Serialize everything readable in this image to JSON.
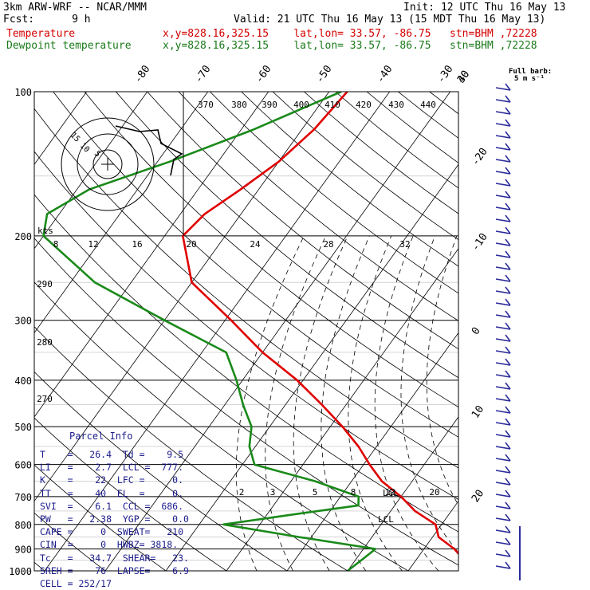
{
  "header": {
    "line1_left": "3km ARW-WRF -- NCAR/MMM",
    "line1_right": "Init: 12 UTC Thu 16 May 13",
    "line2_left": "Fcst:      9 h",
    "line2_right": "Valid: 21 UTC Thu 16 May 13 (15 MDT Thu 16 May 13)",
    "temp_label": "Temperature",
    "temp_info": "x,y=828.16,325.15    lat,lon= 33.57, -86.75   stn=BHM ,72228",
    "dew_label": "Dewpoint temperature",
    "dew_info": "x,y=828.16,325.15    lat,lon= 33.57, -86.75   stn=BHM ,72228"
  },
  "barb_legend": {
    "title": "Full barb:",
    "value": "5 m s⁻¹"
  },
  "colors": {
    "temperature": "#e00000",
    "dewpoint": "#1a8a1a",
    "barbs": "#2b2b9a",
    "grid": "#000000"
  },
  "chart_data": {
    "type": "skew-t",
    "pressure_levels": [
      100,
      200,
      300,
      400,
      500,
      600,
      700,
      800,
      900,
      1000
    ],
    "isotherm_labels": [
      -80,
      -70,
      -60,
      -50,
      -40,
      -30,
      -20,
      -10,
      0,
      10,
      20,
      30,
      40
    ],
    "theta_labels": [
      370,
      380,
      390,
      400,
      410,
      420,
      430,
      440
    ],
    "theta_labels_lower": [
      290,
      280,
      270
    ],
    "mixing_ratio_labels": [
      "2",
      "3",
      "5",
      "8",
      "12",
      "20"
    ],
    "hodograph": {
      "speed_unit": "kts",
      "ring_labels": [
        "5",
        "10",
        "15"
      ],
      "axis_labels": [
        "8",
        "12",
        "16",
        "20",
        "24",
        "28",
        "32"
      ]
    },
    "markers": [
      "LCL",
      "LCL"
    ],
    "series": [
      {
        "name": "Temperature",
        "points": [
          [
            100,
            -47
          ],
          [
            120,
            -48
          ],
          [
            140,
            -50
          ],
          [
            160,
            -53
          ],
          [
            180,
            -56
          ],
          [
            200,
            -57
          ],
          [
            250,
            -50
          ],
          [
            300,
            -39
          ],
          [
            350,
            -30
          ],
          [
            400,
            -21
          ],
          [
            450,
            -14
          ],
          [
            500,
            -8
          ],
          [
            550,
            -3
          ],
          [
            600,
            1
          ],
          [
            650,
            5
          ],
          [
            700,
            10
          ],
          [
            750,
            14
          ],
          [
            800,
            19
          ],
          [
            850,
            21
          ],
          [
            900,
            25
          ],
          [
            950,
            28
          ],
          [
            1000,
            29.5
          ]
        ]
      },
      {
        "name": "Dewpoint temperature",
        "points": [
          [
            100,
            -48
          ],
          [
            120,
            -58
          ],
          [
            140,
            -68
          ],
          [
            160,
            -78
          ],
          [
            180,
            -82
          ],
          [
            200,
            -80
          ],
          [
            250,
            -66
          ],
          [
            300,
            -50
          ],
          [
            350,
            -36
          ],
          [
            400,
            -31
          ],
          [
            450,
            -27
          ],
          [
            500,
            -23
          ],
          [
            550,
            -21
          ],
          [
            600,
            -18
          ],
          [
            650,
            -6
          ],
          [
            700,
            3
          ],
          [
            730,
            4
          ],
          [
            760,
            -5
          ],
          [
            800,
            -16
          ],
          [
            850,
            -2
          ],
          [
            900,
            12
          ],
          [
            950,
            11
          ],
          [
            1000,
            10
          ]
        ]
      }
    ]
  },
  "parcel_info": {
    "title": "Parcel Info",
    "rows": [
      "T    =   26.4  Td =    9.5",
      "LI   =    2.7  LCL =  777.",
      "K    =    22  LFC =     0.",
      "TT   =    40  EL  =     0.",
      "SVI  =    6.1  CCL =  686.",
      "PW   =   2.38  YGP =    0.0",
      "CAPE =     0  SWEAT=   210",
      "CIN  =     0  HWBZ= 3818.",
      "Tc   =   34.7  SHEAR=   23.",
      "SREH =    76  LAPSE=    6.9",
      "CELL = 252/17"
    ]
  }
}
